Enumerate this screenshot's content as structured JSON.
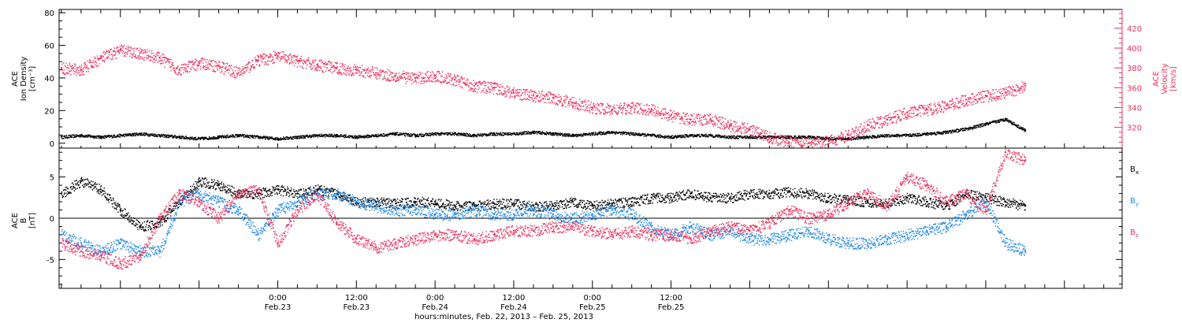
{
  "chart_data": [
    {
      "type": "scatter",
      "panel": "top",
      "left_axis": {
        "label_lines": [
          "ACE",
          "Ion Density",
          "[cm⁻³]"
        ],
        "ylim": [
          -3,
          82
        ],
        "ticks": [
          0,
          20,
          40,
          60,
          80
        ],
        "tick_labels": [
          "0",
          "20",
          "40",
          "60",
          "80"
        ],
        "color": "#000000"
      },
      "right_axis": {
        "label_lines": [
          "ACE",
          "Velocity",
          "[km/s]"
        ],
        "ylim": [
          299,
          439
        ],
        "ticks": [
          320,
          340,
          360,
          380,
          400,
          420
        ],
        "tick_labels": [
          "320",
          "340",
          "360",
          "380",
          "400",
          "420"
        ],
        "color": "#e8305c"
      },
      "series": [
        {
          "color": "#000000",
          "axis": "left",
          "x": [
            -9,
            -6,
            -3,
            0,
            3,
            6,
            9,
            12,
            15,
            18,
            21,
            24,
            27,
            30,
            33,
            36,
            39,
            42,
            45,
            48,
            51,
            54,
            57,
            60,
            63,
            66,
            69,
            72,
            75,
            78,
            81,
            84,
            87,
            90,
            93,
            96,
            99,
            102,
            105,
            108,
            111,
            114,
            117,
            120,
            123,
            126,
            129,
            132,
            135,
            138
          ],
          "y": [
            4,
            5,
            4,
            5,
            6,
            5,
            4,
            3,
            4,
            5,
            4,
            3,
            4,
            5,
            5,
            4,
            5,
            6,
            5,
            6,
            6,
            5,
            6,
            6,
            7,
            6,
            5,
            6,
            7,
            6,
            5,
            4,
            5,
            5,
            4,
            4,
            4,
            4,
            4,
            3,
            3,
            4,
            5,
            5,
            6,
            7,
            9,
            12,
            15,
            8
          ]
        },
        {
          "color": "#e8305c",
          "axis": "right",
          "x": [
            -9,
            -6,
            -3,
            0,
            3,
            6,
            9,
            12,
            15,
            18,
            21,
            24,
            27,
            30,
            33,
            36,
            39,
            42,
            45,
            48,
            51,
            54,
            57,
            60,
            63,
            66,
            69,
            72,
            75,
            78,
            81,
            84,
            87,
            90,
            93,
            96,
            99,
            102,
            105,
            108,
            111,
            114,
            117,
            120,
            123,
            126,
            129,
            132,
            135,
            138
          ],
          "y": [
            380,
            378,
            390,
            398,
            395,
            390,
            378,
            385,
            382,
            375,
            388,
            392,
            387,
            383,
            380,
            378,
            375,
            372,
            370,
            372,
            368,
            362,
            360,
            355,
            352,
            350,
            345,
            340,
            338,
            340,
            338,
            332,
            328,
            328,
            322,
            318,
            310,
            305,
            304,
            306,
            312,
            322,
            328,
            335,
            338,
            342,
            348,
            352,
            355,
            362
          ]
        }
      ]
    },
    {
      "type": "scatter",
      "panel": "bottom",
      "axis": {
        "label_lines": [
          "ACE",
          "B",
          "[nT]"
        ],
        "ylim": [
          -8.5,
          8.5
        ],
        "ticks": [
          -5,
          0,
          5
        ],
        "tick_labels": [
          "-5",
          "0",
          "5"
        ]
      },
      "series": [
        {
          "name": "Bx",
          "color": "#000000",
          "x": [
            -9,
            -6,
            -3,
            0,
            3,
            6,
            9,
            12,
            15,
            18,
            21,
            24,
            27,
            30,
            33,
            36,
            39,
            42,
            45,
            48,
            51,
            54,
            57,
            60,
            63,
            66,
            69,
            72,
            75,
            78,
            81,
            84,
            87,
            90,
            93,
            96,
            99,
            102,
            105,
            108,
            111,
            114,
            117,
            120,
            123,
            126,
            129,
            132,
            135,
            138
          ],
          "y": [
            3,
            4.5,
            3.5,
            1,
            -1,
            -0.5,
            2,
            4.5,
            4,
            3,
            3,
            3.5,
            3,
            3.5,
            3,
            2,
            2,
            1.8,
            2,
            2,
            1.5,
            1.5,
            1.8,
            1.8,
            1.5,
            1.5,
            2,
            1.5,
            1.8,
            2,
            2.5,
            2.5,
            3,
            2.5,
            2.5,
            3,
            3,
            3.2,
            3,
            2.5,
            2.2,
            2,
            1.8,
            2.5,
            2,
            1.5,
            3,
            2.5,
            2,
            1.5
          ]
        },
        {
          "name": "By",
          "color": "#1e88e5",
          "x": [
            -9,
            -6,
            -3,
            0,
            3,
            6,
            9,
            12,
            15,
            18,
            21,
            24,
            27,
            30,
            33,
            36,
            39,
            42,
            45,
            48,
            51,
            54,
            57,
            60,
            63,
            66,
            69,
            72,
            75,
            78,
            81,
            84,
            87,
            90,
            93,
            96,
            99,
            102,
            105,
            108,
            111,
            114,
            117,
            120,
            123,
            126,
            129,
            132,
            135,
            138
          ],
          "y": [
            -2,
            -3,
            -4,
            -3,
            -4,
            -4,
            2,
            3,
            2,
            1,
            -2,
            1,
            2,
            3,
            3,
            2,
            1.5,
            1,
            1,
            0.5,
            0.5,
            1,
            0.5,
            0.5,
            1,
            0.5,
            0,
            0.5,
            1,
            0.5,
            -1,
            -2,
            -1,
            -2,
            -1.5,
            -2.5,
            -2.5,
            -2,
            -1.5,
            -2.5,
            -3,
            -3,
            -2.5,
            -2,
            -1.5,
            -1,
            0.5,
            2,
            -3,
            -4
          ]
        },
        {
          "name": "Bz",
          "color": "#e8305c",
          "x": [
            -9,
            -6,
            -3,
            0,
            3,
            6,
            9,
            12,
            15,
            18,
            21,
            24,
            27,
            30,
            33,
            36,
            39,
            42,
            45,
            48,
            51,
            54,
            57,
            60,
            63,
            66,
            69,
            72,
            75,
            78,
            81,
            84,
            87,
            90,
            93,
            96,
            99,
            102,
            105,
            108,
            111,
            114,
            117,
            120,
            123,
            126,
            129,
            132,
            135,
            138
          ],
          "y": [
            -3,
            -4,
            -4.5,
            -5.5,
            -4.5,
            0,
            3,
            2,
            0,
            3,
            3.5,
            -3,
            1,
            3,
            -0.5,
            -2.5,
            -3.5,
            -3,
            -2.5,
            -2,
            -2,
            -2.5,
            -2,
            -1.5,
            -1.5,
            -1,
            -1,
            -1.5,
            -2,
            -1.5,
            -2,
            -2,
            -2.5,
            -1.5,
            -1,
            -1.5,
            -0.5,
            1,
            0,
            0.5,
            2,
            3,
            1.5,
            5,
            4,
            2,
            3,
            1,
            8,
            7
          ]
        }
      ],
      "legend": [
        {
          "base": "B",
          "sub": "x",
          "color": "#000000"
        },
        {
          "base": "B",
          "sub": "y",
          "color": "#1e88e5"
        },
        {
          "base": "B",
          "sub": "z",
          "color": "#e8305c"
        }
      ]
    }
  ],
  "x_axis": {
    "unit": "hours since 2013-02-22 00:00 UT",
    "xlim": [
      -9.35,
      152.8
    ],
    "major_ticks": [
      {
        "x": 24,
        "time": "0:00",
        "date": "Feb.23"
      },
      {
        "x": 36,
        "time": "12:00",
        "date": "Feb.23"
      },
      {
        "x": 48,
        "time": "0:00",
        "date": "Feb.24"
      },
      {
        "x": 60,
        "time": "12:00",
        "date": "Feb.24"
      },
      {
        "x": 72,
        "time": "0:00",
        "date": "Feb.25"
      },
      {
        "x": 84,
        "time": "12:00",
        "date": "Feb.25"
      }
    ],
    "label": "hours:minutes, Feb. 22, 2013 – Feb. 25, 2013"
  }
}
